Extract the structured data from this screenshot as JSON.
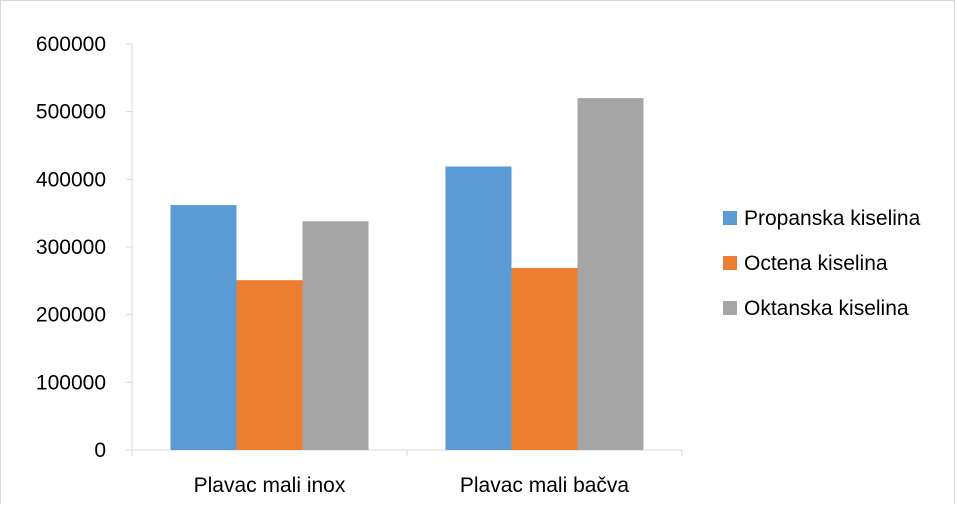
{
  "chart_data": {
    "type": "bar",
    "title": "",
    "xlabel": "",
    "ylabel": "",
    "categories": [
      "Plavac mali inox",
      "Plavac mali bačva"
    ],
    "series": [
      {
        "name": "Propanska kiselina",
        "color": "#5b9bd5",
        "values": [
          362000,
          419000
        ]
      },
      {
        "name": "Octena kiselina",
        "color": "#ed7d31",
        "values": [
          251000,
          269000
        ]
      },
      {
        "name": "Oktanska kiselina",
        "color": "#a5a5a5",
        "values": [
          338000,
          520000
        ]
      }
    ],
    "ylim": [
      0,
      600000
    ],
    "yticks": [
      "0",
      "100000",
      "200000",
      "300000",
      "400000",
      "500000",
      "600000"
    ],
    "grid": false,
    "legend_position": "right"
  }
}
